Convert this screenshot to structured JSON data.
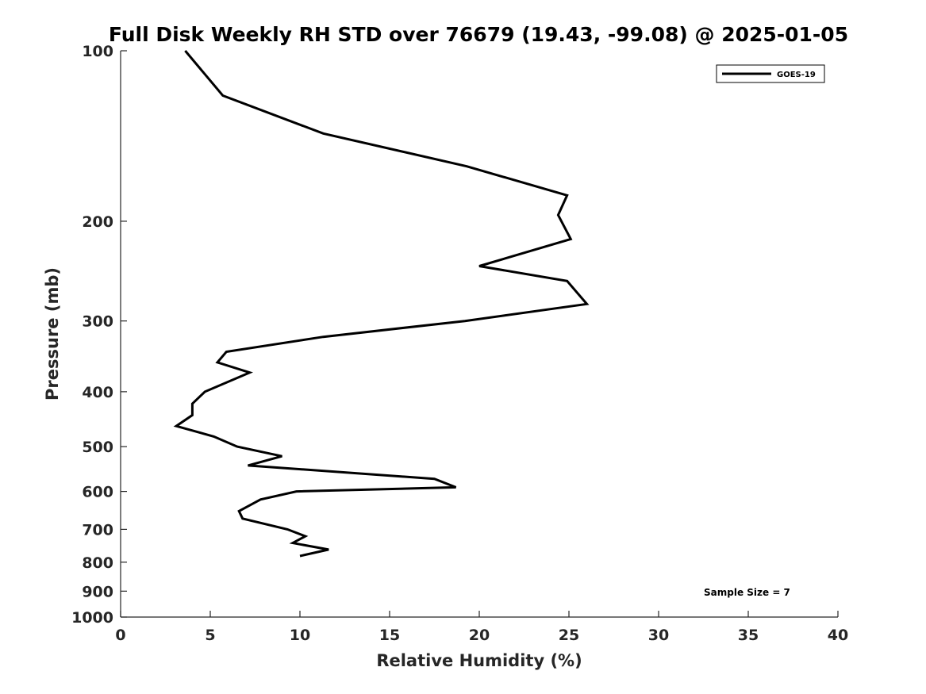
{
  "chart_data": {
    "type": "line",
    "title": "Full Disk Weekly RH STD over 76679 (19.43, -99.08) @ 2025-01-05",
    "xlabel": "Relative Humidity (%)",
    "ylabel": "Pressure (mb)",
    "xlim": [
      0,
      40
    ],
    "ylim": [
      1000,
      100
    ],
    "y_scale": "log",
    "x_ticks": [
      0,
      5,
      10,
      15,
      20,
      25,
      30,
      35,
      40
    ],
    "y_ticks": [
      100,
      200,
      300,
      400,
      500,
      600,
      700,
      800,
      900,
      1000
    ],
    "grid": false,
    "legend_position": "top-right",
    "series": [
      {
        "name": "GOES-19",
        "color": "#000000",
        "x": [
          3.6,
          5.7,
          11.3,
          19.3,
          24.9,
          24.4,
          25.1,
          20.0,
          24.9,
          26.0,
          19.2,
          11.3,
          5.9,
          5.4,
          7.2,
          4.7,
          4.0,
          4.0,
          3.1,
          5.2,
          6.5,
          9.0,
          7.1,
          17.5,
          18.7,
          9.8,
          7.8,
          6.6,
          6.8,
          9.3,
          10.3,
          9.6,
          11.6,
          10.0
        ],
        "y": [
          100,
          120,
          140,
          160,
          180,
          195,
          215,
          240,
          255,
          280,
          300,
          320,
          340,
          355,
          370,
          400,
          420,
          440,
          460,
          480,
          500,
          520,
          540,
          570,
          590,
          600,
          620,
          650,
          670,
          700,
          720,
          740,
          760,
          780
        ]
      }
    ],
    "annotations": [
      "Sample Size = 7"
    ]
  }
}
